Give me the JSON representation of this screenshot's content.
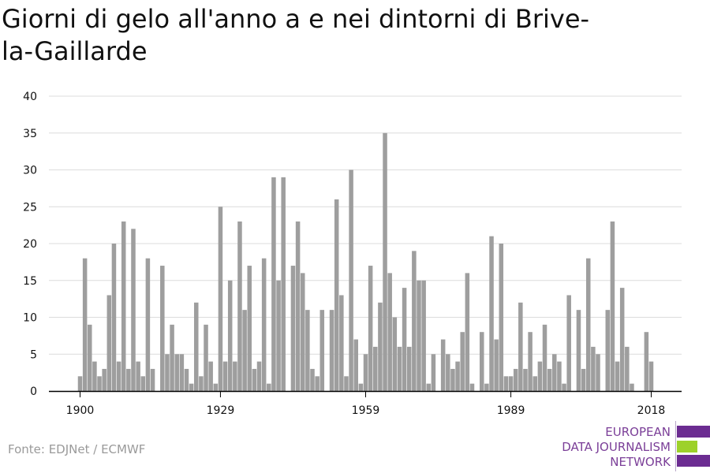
{
  "title": "Giorni di gelo all'anno a e nei dintorni di Brive-la-Gaillarde",
  "source": "Fonte: EDJNet / ECMWF",
  "logo": {
    "lines": [
      "EUROPEAN",
      "DATA JOURNALISM",
      "NETWORK"
    ],
    "colors": [
      "#6b2c91",
      "#9dd12a",
      "#6b2c91"
    ]
  },
  "chart_data": {
    "type": "bar",
    "x_start": 1900,
    "x_end": 2018,
    "x_ticks": [
      1900,
      1929,
      1959,
      1989,
      2018
    ],
    "x_tick_labels": [
      "1900",
      "1929",
      "1959",
      "1989",
      "2018"
    ],
    "ylim": [
      0,
      40
    ],
    "y_ticks": [
      0,
      5,
      10,
      15,
      20,
      25,
      30,
      35,
      40
    ],
    "grid": true,
    "bar_color": "#9e9e9e",
    "values": [
      2,
      18,
      9,
      4,
      2,
      3,
      13,
      20,
      4,
      23,
      3,
      22,
      4,
      2,
      18,
      3,
      0,
      17,
      5,
      9,
      5,
      5,
      3,
      1,
      12,
      2,
      9,
      4,
      1,
      25,
      4,
      15,
      4,
      23,
      11,
      17,
      3,
      4,
      18,
      1,
      29,
      15,
      29,
      0,
      17,
      23,
      16,
      11,
      3,
      2,
      11,
      0,
      11,
      26,
      13,
      2,
      30,
      7,
      1,
      5,
      17,
      6,
      12,
      35,
      16,
      10,
      6,
      14,
      6,
      19,
      15,
      15,
      1,
      5,
      0,
      7,
      5,
      3,
      4,
      8,
      16,
      1,
      0,
      8,
      1,
      21,
      7,
      20,
      2,
      2,
      3,
      12,
      3,
      8,
      2,
      4,
      9,
      3,
      5,
      4,
      1,
      13,
      0,
      11,
      3,
      18,
      6,
      5,
      0,
      11,
      23,
      4,
      14,
      6,
      1,
      0,
      0,
      8,
      4
    ]
  }
}
